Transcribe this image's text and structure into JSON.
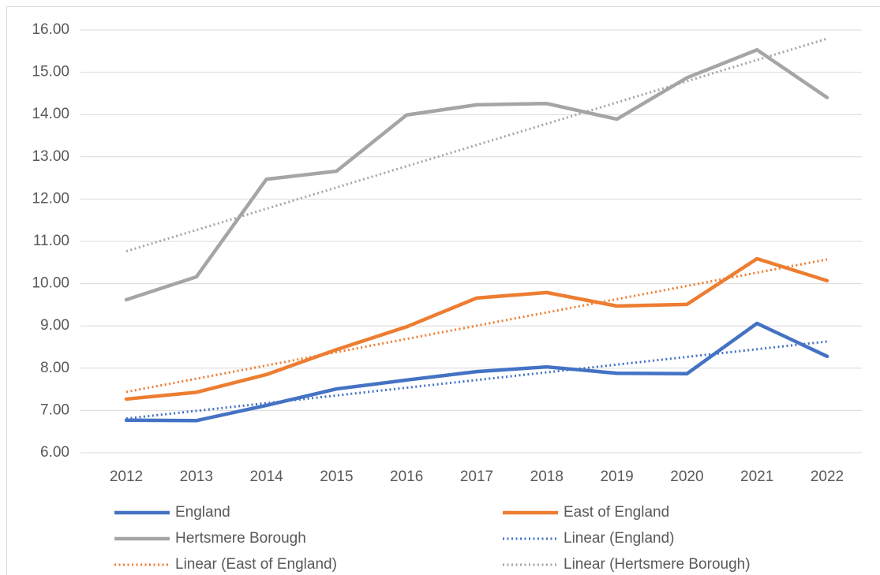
{
  "chart_data": {
    "type": "line",
    "categories": [
      "2012",
      "2013",
      "2014",
      "2015",
      "2016",
      "2017",
      "2018",
      "2019",
      "2020",
      "2021",
      "2022"
    ],
    "series": [
      {
        "name": "England",
        "color": "#4472c4",
        "values": [
          6.77,
          6.76,
          7.12,
          7.51,
          7.72,
          7.92,
          8.03,
          7.88,
          7.87,
          9.06,
          8.28
        ]
      },
      {
        "name": "East of England",
        "color": "#ed7d31",
        "values": [
          7.27,
          7.43,
          7.85,
          8.44,
          8.98,
          9.66,
          9.79,
          9.47,
          9.51,
          10.59,
          10.07
        ]
      },
      {
        "name": "Hertsmere Borough",
        "color": "#a5a5a5",
        "values": [
          9.62,
          10.16,
          12.47,
          12.66,
          13.99,
          14.23,
          14.26,
          13.89,
          14.87,
          15.53,
          14.4
        ]
      }
    ],
    "trendlines": [
      {
        "name": "Linear (England)",
        "color": "#4472c4",
        "series": 0
      },
      {
        "name": "Linear (East of England)",
        "color": "#ed7d31",
        "series": 1
      },
      {
        "name": "Linear (Hertsmere Borough)",
        "color": "#a5a5a5",
        "series": 2
      }
    ],
    "ylim": [
      6,
      16
    ],
    "yticks": [
      {
        "value": 6,
        "label": "6.00"
      },
      {
        "value": 7,
        "label": "7.00"
      },
      {
        "value": 8,
        "label": "8.00"
      },
      {
        "value": 9,
        "label": "9.00"
      },
      {
        "value": 10,
        "label": "10.00"
      },
      {
        "value": 11,
        "label": "11.00"
      },
      {
        "value": 12,
        "label": "12.00"
      },
      {
        "value": 13,
        "label": "13.00"
      },
      {
        "value": 14,
        "label": "14.00"
      },
      {
        "value": 15,
        "label": "15.00"
      },
      {
        "value": 16,
        "label": "16.00"
      }
    ],
    "grid": true,
    "legend": "bottom"
  }
}
